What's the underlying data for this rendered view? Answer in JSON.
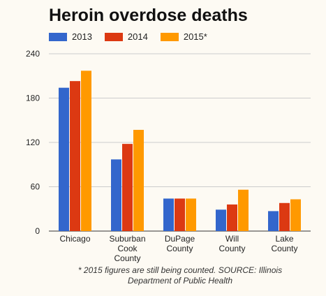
{
  "chart_data": {
    "type": "bar",
    "title": "Heroin overdose deaths",
    "categories": [
      [
        "Chicago"
      ],
      [
        "Suburban",
        "Cook",
        "County"
      ],
      [
        "DuPage",
        "County"
      ],
      [
        "Will",
        "County"
      ],
      [
        "Lake",
        "County"
      ]
    ],
    "series": [
      {
        "name": "2013",
        "color": "#3366cc",
        "values": [
          194,
          97,
          44,
          29,
          27
        ]
      },
      {
        "name": "2014",
        "color": "#dc3912",
        "values": [
          203,
          118,
          44,
          36,
          38
        ]
      },
      {
        "name": "2015*",
        "color": "#ff9900",
        "values": [
          217,
          137,
          44,
          56,
          43
        ]
      }
    ],
    "ylim": [
      0,
      240
    ],
    "yticks": [
      0,
      60,
      120,
      180,
      240
    ],
    "grid": true,
    "legend": "top-left",
    "footnote": "* 2015 figures are still being counted. SOURCE: Illinois Department of Public Health"
  }
}
